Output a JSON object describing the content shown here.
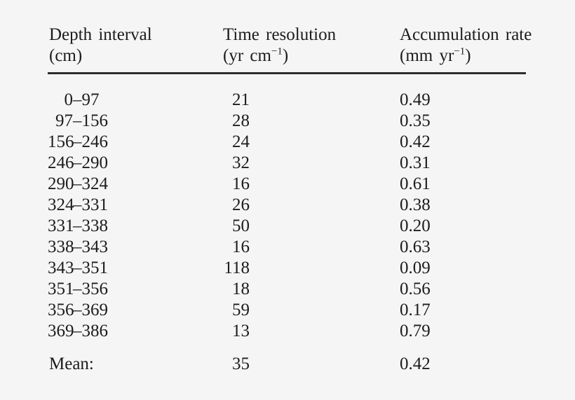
{
  "page": {
    "background_color": "#f5f5f5",
    "text_color": "#1c1c1c",
    "rule_color": "#2e2e2e"
  },
  "table": {
    "dash": "–",
    "columns": [
      {
        "title": "Depth interval",
        "unit_pre": "(cm)"
      },
      {
        "title": "Time resolution",
        "unit_pre": "(yr cm",
        "unit_sup": "−1",
        "unit_post": ")"
      },
      {
        "title": "Accumulation rate",
        "unit_pre": "(mm yr",
        "unit_sup": "−1",
        "unit_post": ")"
      }
    ],
    "rows": [
      {
        "from": "0",
        "to": "97",
        "time_resolution": "21",
        "accumulation_rate": "0.49"
      },
      {
        "from": "97",
        "to": "156",
        "time_resolution": "28",
        "accumulation_rate": "0.35"
      },
      {
        "from": "156",
        "to": "246",
        "time_resolution": "24",
        "accumulation_rate": "0.42"
      },
      {
        "from": "246",
        "to": "290",
        "time_resolution": "32",
        "accumulation_rate": "0.31"
      },
      {
        "from": "290",
        "to": "324",
        "time_resolution": "16",
        "accumulation_rate": "0.61"
      },
      {
        "from": "324",
        "to": "331",
        "time_resolution": "26",
        "accumulation_rate": "0.38"
      },
      {
        "from": "331",
        "to": "338",
        "time_resolution": "50",
        "accumulation_rate": "0.20"
      },
      {
        "from": "338",
        "to": "343",
        "time_resolution": "16",
        "accumulation_rate": "0.63"
      },
      {
        "from": "343",
        "to": "351",
        "time_resolution": "118",
        "accumulation_rate": "0.09"
      },
      {
        "from": "351",
        "to": "356",
        "time_resolution": "18",
        "accumulation_rate": "0.56"
      },
      {
        "from": "356",
        "to": "369",
        "time_resolution": "59",
        "accumulation_rate": "0.17"
      },
      {
        "from": "369",
        "to": "386",
        "time_resolution": "13",
        "accumulation_rate": "0.79"
      }
    ],
    "mean": {
      "label": "Mean:",
      "time_resolution": "35",
      "accumulation_rate": "0.42"
    }
  }
}
